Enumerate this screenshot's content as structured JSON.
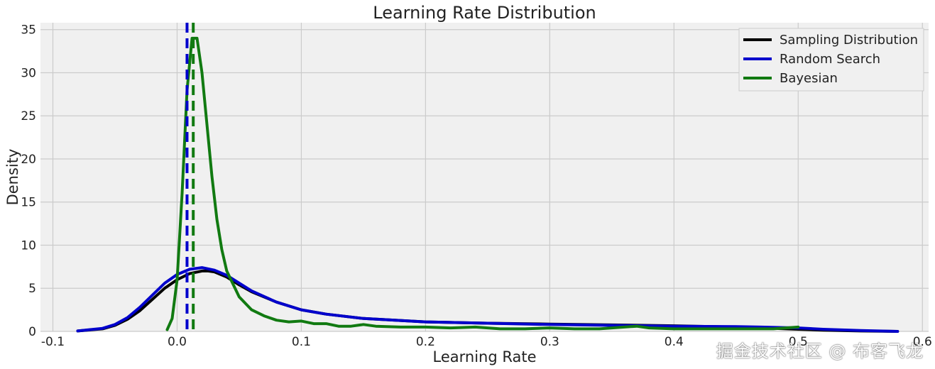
{
  "watermark": "掘金技术社区 @ 布客飞龙",
  "colors": {
    "plot_background": "#f0f0f0",
    "grid": "#cbcbcb",
    "sampling": "#000000",
    "random": "#0000cc",
    "bayesian": "#117a11"
  },
  "chart_data": {
    "type": "line",
    "title": "Learning Rate Distribution",
    "xlabel": "Learning Rate",
    "ylabel": "Density",
    "xlim": [
      -0.11,
      0.605
    ],
    "ylim": [
      0,
      35.8
    ],
    "xticks": [
      -0.1,
      0.0,
      0.1,
      0.2,
      0.3,
      0.4,
      0.5,
      0.6
    ],
    "xtick_labels": [
      "-0.1",
      "0.0",
      "0.1",
      "0.2",
      "0.3",
      "0.4",
      "0.5",
      "0.6"
    ],
    "yticks": [
      0,
      5,
      10,
      15,
      20,
      25,
      30,
      35
    ],
    "ytick_labels": [
      "0",
      "5",
      "10",
      "15",
      "20",
      "25",
      "30",
      "35"
    ],
    "grid": true,
    "legend_position": "top-right",
    "series": [
      {
        "name": "Sampling Distribution",
        "color": "#000000",
        "x": [
          -0.08,
          -0.06,
          -0.05,
          -0.04,
          -0.03,
          -0.02,
          -0.01,
          0.0,
          0.01,
          0.02,
          0.025,
          0.03,
          0.04,
          0.05,
          0.06,
          0.08,
          0.1,
          0.12,
          0.15,
          0.2,
          0.25,
          0.3,
          0.35,
          0.4,
          0.45,
          0.48,
          0.5,
          0.52,
          0.55,
          0.58
        ],
        "y": [
          0.05,
          0.3,
          0.7,
          1.4,
          2.4,
          3.7,
          5.0,
          6.0,
          6.7,
          7.0,
          7.0,
          6.9,
          6.3,
          5.4,
          4.6,
          3.4,
          2.5,
          2.0,
          1.5,
          1.1,
          0.95,
          0.85,
          0.75,
          0.65,
          0.5,
          0.35,
          0.25,
          0.15,
          0.05,
          0.0
        ]
      },
      {
        "name": "Random Search",
        "color": "#0000cc",
        "x": [
          -0.08,
          -0.06,
          -0.05,
          -0.04,
          -0.03,
          -0.02,
          -0.01,
          0.0,
          0.01,
          0.02,
          0.03,
          0.04,
          0.05,
          0.06,
          0.08,
          0.1,
          0.12,
          0.15,
          0.2,
          0.25,
          0.3,
          0.35,
          0.4,
          0.45,
          0.47,
          0.5,
          0.52,
          0.55,
          0.58
        ],
        "y": [
          0.05,
          0.35,
          0.8,
          1.6,
          2.8,
          4.2,
          5.6,
          6.6,
          7.2,
          7.4,
          7.1,
          6.5,
          5.6,
          4.7,
          3.4,
          2.5,
          2.0,
          1.5,
          1.1,
          0.95,
          0.8,
          0.7,
          0.6,
          0.55,
          0.5,
          0.4,
          0.25,
          0.1,
          0.0
        ]
      },
      {
        "name": "Bayesian",
        "color": "#117a11",
        "x": [
          -0.008,
          -0.004,
          0.0,
          0.004,
          0.008,
          0.012,
          0.016,
          0.02,
          0.024,
          0.028,
          0.032,
          0.036,
          0.04,
          0.045,
          0.05,
          0.06,
          0.07,
          0.08,
          0.09,
          0.1,
          0.11,
          0.12,
          0.13,
          0.14,
          0.15,
          0.16,
          0.18,
          0.2,
          0.22,
          0.24,
          0.26,
          0.28,
          0.3,
          0.32,
          0.34,
          0.36,
          0.37,
          0.38,
          0.4,
          0.45,
          0.48,
          0.5
        ],
        "y": [
          0.2,
          1.5,
          6.0,
          16.0,
          28.0,
          34.0,
          34.0,
          30.0,
          24.0,
          18.0,
          13.0,
          9.5,
          7.0,
          5.5,
          4.0,
          2.5,
          1.8,
          1.3,
          1.1,
          1.2,
          0.9,
          0.9,
          0.6,
          0.6,
          0.8,
          0.6,
          0.5,
          0.5,
          0.4,
          0.5,
          0.3,
          0.3,
          0.4,
          0.3,
          0.3,
          0.5,
          0.6,
          0.4,
          0.3,
          0.3,
          0.3,
          0.5
        ]
      }
    ],
    "vlines": [
      {
        "x": 0.008,
        "color": "#0000cc",
        "style": "dashed"
      },
      {
        "x": 0.013,
        "color": "#117a11",
        "style": "dashed"
      }
    ]
  }
}
